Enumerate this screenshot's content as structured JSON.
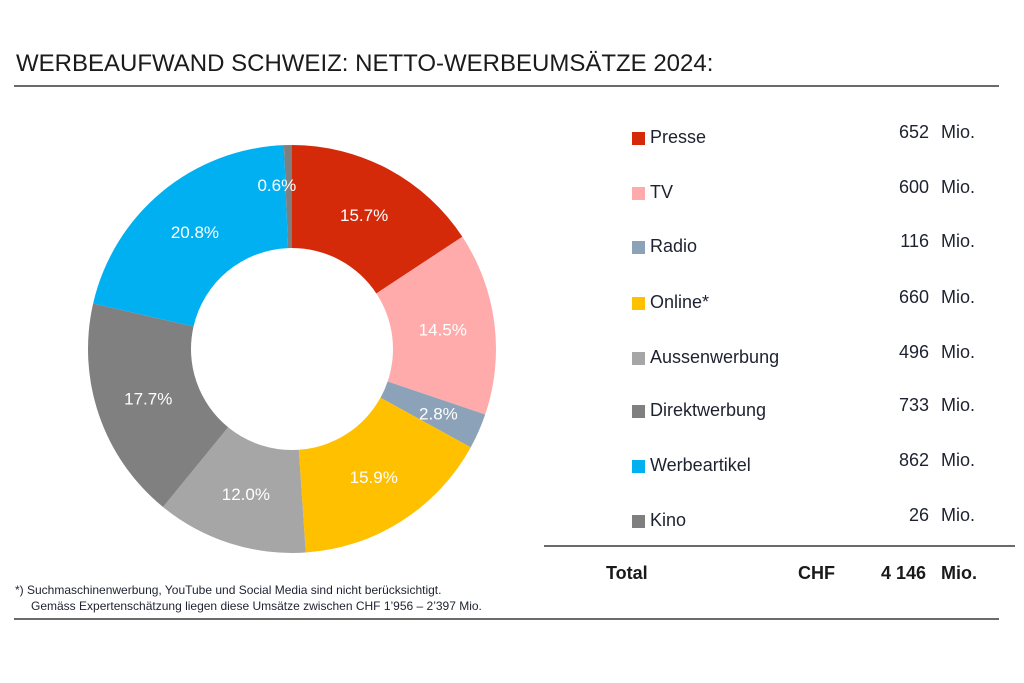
{
  "header": {
    "title": "WERBEAUFWAND SCHWEIZ: NETTO-WERBEUMSÄTZE 2024:"
  },
  "chart_data": {
    "type": "pie",
    "variant": "donut",
    "title": "WERBEAUFWAND SCHWEIZ: NETTO-WERBEUMSÄTZE 2024:",
    "start_angle_deg": 0,
    "direction": "clockwise",
    "legend_position": "right",
    "unit": "Mio.",
    "currency": "CHF",
    "slices": [
      {
        "name": "Presse",
        "value": 652,
        "percent_label": "15.7%",
        "color": "#d42a0a"
      },
      {
        "name": "TV",
        "value": 600,
        "percent_label": "14.5%",
        "color": "#ffabab"
      },
      {
        "name": "Radio",
        "value": 116,
        "percent_label": "2.8%",
        "color": "#8ca2b8"
      },
      {
        "name": "Online*",
        "value": 660,
        "percent_label": "15.9%",
        "color": "#ffc000"
      },
      {
        "name": "Aussenwerbung",
        "value": 496,
        "percent_label": "12.0%",
        "color": "#a6a6a6"
      },
      {
        "name": "Direktwerbung",
        "value": 733,
        "percent_label": "17.7%",
        "color": "#808080"
      },
      {
        "name": "Werbeartikel",
        "value": 862,
        "percent_label": "20.8%",
        "color": "#00b0f0"
      },
      {
        "name": "Kino",
        "value": 26,
        "percent_label": "0.6%",
        "color": "#7f7f7f"
      }
    ],
    "total": {
      "label": "Total",
      "currency": "CHF",
      "value_text": "4 146",
      "unit": "Mio."
    }
  },
  "legend": {
    "rows": [
      {
        "label": "Presse",
        "value": "652",
        "unit": "Mio."
      },
      {
        "label": "TV",
        "value": "600",
        "unit": "Mio."
      },
      {
        "label": "Radio",
        "value": "116",
        "unit": "Mio."
      },
      {
        "label": "Online*",
        "value": "660",
        "unit": "Mio."
      },
      {
        "label": "Aussenwerbung",
        "value": "496",
        "unit": "Mio."
      },
      {
        "label": "Direktwerbung",
        "value": "733",
        "unit": "Mio."
      },
      {
        "label": "Werbeartikel",
        "value": "862",
        "unit": "Mio."
      },
      {
        "label": "Kino",
        "value": "26",
        "unit": "Mio."
      }
    ],
    "total": {
      "label": "Total",
      "currency": "CHF",
      "value": "4 146",
      "unit": "Mio."
    }
  },
  "footnote": {
    "line1": "*) Suchmaschinenwerbung, YouTube und Social Media sind nicht berücksichtigt.",
    "line2": "Gemäss Expertenschätzung liegen diese Umsätze zwischen CHF 1’956 – 2’397 Mio."
  }
}
